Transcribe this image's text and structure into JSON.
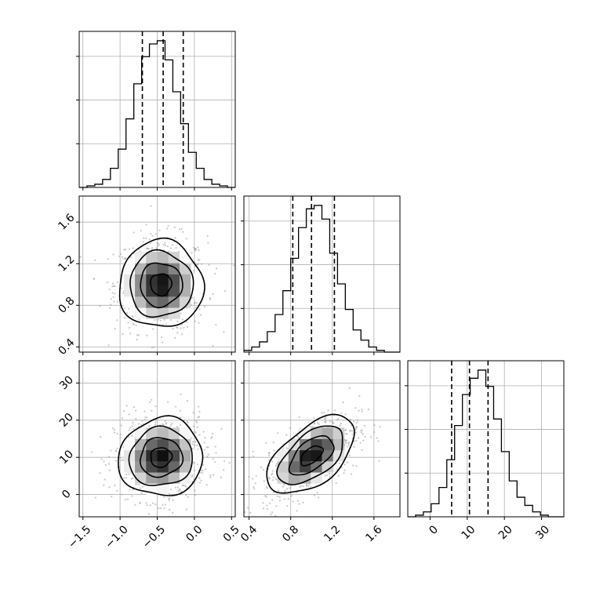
{
  "chart_data": {
    "type": "corner",
    "description_units": "three parameters p0, p1, p2 (unlabeled); 1D marginal histograms on diagonal, 2D density+contours off-diagonal",
    "parameters": [
      {
        "key": "p0",
        "range": [
          -1.55,
          0.55
        ],
        "ticks": [
          -1.5,
          -1.0,
          -0.5,
          0.0,
          0.5
        ],
        "tick_labels": [
          "−1.5",
          "−1.0",
          "−0.5",
          "0.0",
          "0.5"
        ],
        "quantiles": [
          -0.7,
          -0.42,
          -0.15
        ]
      },
      {
        "key": "p1",
        "range": [
          0.35,
          1.85
        ],
        "ticks": [
          0.4,
          0.8,
          1.2,
          1.6
        ],
        "tick_labels": [
          "0.4",
          "0.8",
          "1.2",
          "1.6"
        ],
        "quantiles": [
          0.82,
          1.0,
          1.22
        ]
      },
      {
        "key": "p2",
        "range": [
          -6,
          36
        ],
        "ticks": [
          0,
          10,
          20,
          30
        ],
        "tick_labels": [
          "0",
          "10",
          "20",
          "30"
        ],
        "quantiles": [
          5.8,
          10.6,
          15.6
        ]
      }
    ],
    "histograms": [
      {
        "param": "p0",
        "bin_start": -1.55,
        "bin_width": 0.105,
        "counts": [
          0,
          1,
          2,
          5,
          12,
          24,
          43,
          65,
          82,
          90,
          92,
          80,
          60,
          40,
          22,
          12,
          5,
          2,
          1,
          0
        ]
      },
      {
        "param": "p1",
        "bin_start": 0.35,
        "bin_width": 0.075,
        "counts": [
          1,
          3,
          6,
          12,
          22,
          36,
          55,
          73,
          84,
          86,
          78,
          58,
          40,
          25,
          13,
          7,
          3,
          1,
          0,
          0
        ]
      },
      {
        "param": "p2",
        "bin_start": -6,
        "bin_width": 2.1,
        "counts": [
          0,
          1,
          3,
          8,
          18,
          35,
          56,
          75,
          85,
          90,
          80,
          60,
          40,
          22,
          12,
          7,
          3,
          1,
          0,
          0
        ]
      }
    ],
    "pairs": [
      {
        "x": "p0",
        "y": "p1",
        "center": [
          -0.45,
          1.0
        ],
        "sigma": [
          0.27,
          0.2
        ],
        "rho": 0.0
      },
      {
        "x": "p0",
        "y": "p2",
        "center": [
          -0.45,
          10.0
        ],
        "sigma": [
          0.27,
          5.0
        ],
        "rho": 0.05
      },
      {
        "x": "p1",
        "y": "p2",
        "center": [
          1.0,
          10.5
        ],
        "sigma": [
          0.2,
          5.0
        ],
        "rho": 0.55
      }
    ],
    "contour_levels_sigma": [
      0.5,
      1.0,
      1.5,
      2.0
    ],
    "density_cells": 14,
    "scatter_points_per_panel": 700,
    "grid": true,
    "colors": {
      "ink": "#000000",
      "grid": "#b0b0b0",
      "points": "#9a9a9a",
      "density_dark": "#000000",
      "density_light": "#ffffff"
    }
  }
}
